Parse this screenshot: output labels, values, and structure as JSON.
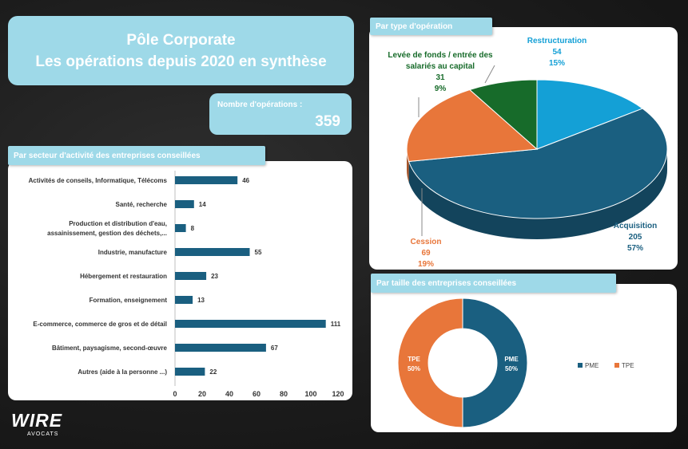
{
  "title_line1": "Pôle Corporate",
  "title_line2": "Les opérations depuis 2020 en synthèse",
  "count": {
    "label": "Nombre d'opérations :",
    "value": "359"
  },
  "logo": {
    "brand": "WIRE",
    "sub": "AVOCATS"
  },
  "colors": {
    "dark_blue": "#1a5f80",
    "orange": "#e8763a",
    "green": "#176b2a",
    "light_blue": "#14a0d6",
    "header_cyan": "#9ed9e8"
  },
  "chart_data": [
    {
      "type": "bar",
      "orientation": "horizontal",
      "title": "Par secteur d'activité des entreprises conseillées",
      "categories": [
        "Activités de conseils, Informatique, Télécoms",
        "Santé, recherche",
        "Production et distribution d'eau, assainissement, gestion des déchets,...",
        "Industrie, manufacture",
        "Hébergement et restauration",
        "Formation, enseignement",
        "E-commerce, commerce de gros et de détail",
        "Bâtiment, paysagisme, second-œuvre",
        "Autres (aide à la personne ...)"
      ],
      "values": [
        46,
        14,
        8,
        55,
        23,
        13,
        111,
        67,
        22
      ],
      "xlim": [
        0,
        120
      ],
      "ticks": [
        0,
        20,
        40,
        60,
        80,
        100,
        120
      ],
      "grid": false
    },
    {
      "type": "pie",
      "title": "Par type d'opération",
      "labels": [
        "Acquisition",
        "Cession",
        "Levée de fonds / entrée des salariés au capital",
        "Restructuration"
      ],
      "values": [
        205,
        69,
        31,
        54
      ],
      "percents": [
        "57%",
        "19%",
        "9%",
        "15%"
      ],
      "colors": [
        "#1a5f80",
        "#e8763a",
        "#176b2a",
        "#14a0d6"
      ]
    },
    {
      "type": "pie",
      "style": "donut",
      "title": "Par taille des entreprises conseillées",
      "labels": [
        "PME",
        "TPE"
      ],
      "percents": [
        "50%",
        "50%"
      ],
      "values": [
        50,
        50
      ],
      "colors": [
        "#1a5f80",
        "#e8763a"
      ],
      "legend": "right"
    }
  ]
}
